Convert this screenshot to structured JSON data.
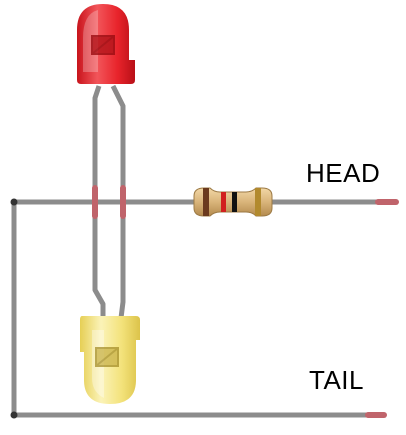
{
  "labels": {
    "head": "HEAD",
    "tail": "TAIL"
  },
  "colors": {
    "wire": "#8c8c8c",
    "wire_end": "#c0646b",
    "junction": "#333333",
    "led_red": "#e8242b",
    "led_yellow": "#f3e27a",
    "lead": "#8c8c8c",
    "resistor_body": "#d9b47a",
    "resistor_band_1": "#6b3a1e",
    "resistor_band_2": "#d1201f",
    "resistor_band_3": "#111111",
    "resistor_band_4": "#b28a2e"
  },
  "components": {
    "led_top": "red-led",
    "led_bottom": "yellow-led",
    "resistor": "resistor"
  }
}
